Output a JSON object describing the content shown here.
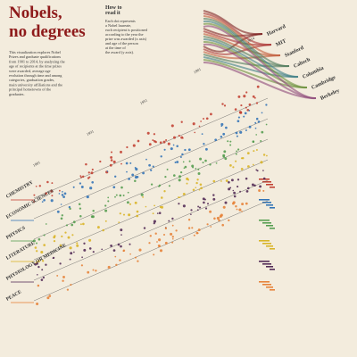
{
  "header": {
    "title_line1": "Nobels,",
    "title_line2": "no degrees",
    "intro": [
      "This visualization explores Nobel",
      "Prizes and graduate qualifications",
      "from 1901 to 2014, by analyzing the",
      "age of recipients at the time prizes",
      "were awarded, average age",
      "evolution through time and among",
      "categories, graduation grades,",
      "main university affiliations and the",
      "principal hometowns of the",
      "graduates."
    ]
  },
  "how_to_read": {
    "heading": [
      "How to",
      "read it"
    ],
    "text": [
      "Each dot represents",
      "a Nobel laureate,",
      "each recipient is positioned",
      "according to the year the",
      "prize was awarded (x axis)",
      "and age of the person",
      "at the time of",
      "the award (y axis)."
    ]
  },
  "universities": [
    "Harvard",
    "MIT",
    "Stanford",
    "Caltech",
    "Columbia",
    "Cambridge",
    "Berkeley"
  ],
  "categories": [
    {
      "name": "CHEMISTRY",
      "color": "#c0392b"
    },
    {
      "name": "ECONOMIC SCIENCES",
      "color": "#2a6fb5"
    },
    {
      "name": "PHYSICS",
      "color": "#4f9a4a"
    },
    {
      "name": "LITERATURE",
      "color": "#d8b21e"
    },
    {
      "name": "PHYSIOLOGY OR MEDICINE",
      "color": "#4b2350"
    },
    {
      "name": "PEACE",
      "color": "#e57e31"
    }
  ],
  "years": [
    "1901",
    "1931",
    "1951",
    "1981",
    "2014"
  ]
}
